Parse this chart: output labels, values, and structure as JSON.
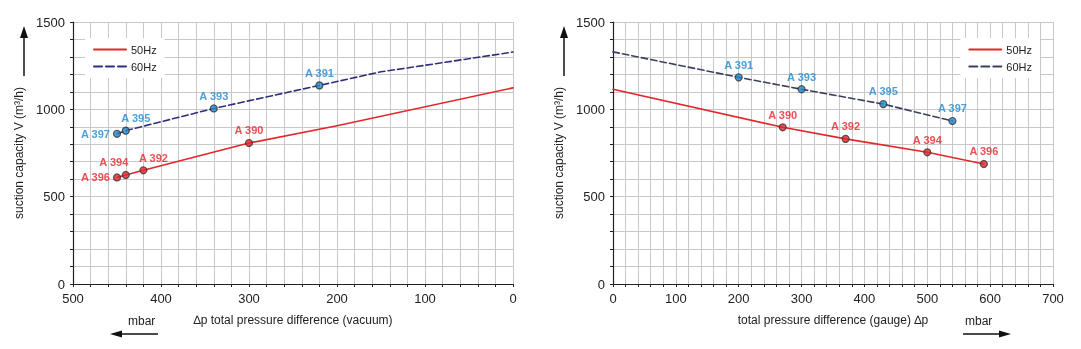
{
  "chart_data": [
    {
      "type": "line",
      "xlabel": "∆p total pressure difference (vacuum)",
      "ylabel": "suction capacity V (m³/h)",
      "annotations": [
        "mbar"
      ],
      "xlim": [
        500,
        0
      ],
      "ylim": [
        0,
        1500
      ],
      "xticks": [
        0,
        {
          "value": 20,
          "label": null
        },
        {
          "value": 40,
          "label": null
        },
        {
          "value": 60,
          "label": null
        },
        {
          "value": 80,
          "label": null
        },
        100,
        {
          "value": 120,
          "label": null
        },
        {
          "value": 140,
          "label": null
        },
        {
          "value": 160,
          "label": null
        },
        {
          "value": 180,
          "label": null
        },
        200,
        {
          "value": 220,
          "label": null
        },
        {
          "value": 240,
          "label": null
        },
        {
          "value": 260,
          "label": null
        },
        {
          "value": 280,
          "label": null
        },
        300,
        {
          "value": 320,
          "label": null
        },
        {
          "value": 340,
          "label": null
        },
        {
          "value": 360,
          "label": null
        },
        {
          "value": 380,
          "label": null
        },
        400,
        {
          "value": 420,
          "label": null
        },
        {
          "value": 440,
          "label": null
        },
        {
          "value": 460,
          "label": null
        },
        {
          "value": 480,
          "label": null
        },
        500
      ],
      "yticks": [
        0,
        {
          "value": 100,
          "label": null
        },
        {
          "value": 200,
          "label": null
        },
        {
          "value": 300,
          "label": null
        },
        {
          "value": 400,
          "label": null
        },
        500,
        {
          "value": 600,
          "label": null
        },
        {
          "value": 700,
          "label": null
        },
        {
          "value": 800,
          "label": null
        },
        {
          "value": 900,
          "label": null
        },
        1000,
        {
          "value": 1100,
          "label": null
        },
        {
          "value": 1200,
          "label": null
        },
        {
          "value": 1300,
          "label": null
        },
        {
          "value": 1400,
          "label": null
        },
        1500
      ],
      "grid": true,
      "legend": "top left",
      "series": [
        {
          "name": "50Hz",
          "color": "#e3262b",
          "line_style": "solid",
          "marker": "none",
          "x": [
            450,
            440,
            420,
            300,
            200,
            0
          ],
          "values": [
            610,
            624,
            651,
            807,
            906,
            1123
          ]
        },
        {
          "name": "60Hz",
          "color": "#2e2f7a",
          "line_style": "dashed",
          "marker": "none",
          "x": [
            450,
            440,
            340,
            220,
            150,
            100,
            0
          ],
          "values": [
            860,
            878,
            1005,
            1137,
            1215,
            1252,
            1328
          ]
        },
        {
          "type": "scatter",
          "color": "#e3262b",
          "marker": "circle",
          "x": [
            450,
            440,
            420,
            300
          ],
          "values": [
            610,
            624,
            651,
            807
          ],
          "value_labels": [
            "A 396",
            "A 394",
            "A 392",
            "A 390"
          ]
        },
        {
          "type": "scatter",
          "color": "#1e88d0",
          "marker": "circle",
          "x": [
            450,
            440,
            340,
            220
          ],
          "values": [
            860,
            878,
            1005,
            1137
          ],
          "value_labels": [
            "A 397",
            "A 395",
            "A 393",
            "A 391"
          ]
        }
      ]
    },
    {
      "type": "line",
      "xlabel": "total pressure difference (gauge) ∆p",
      "ylabel": "suction capacity V (m³/h)",
      "annotations": [
        "mbar"
      ],
      "xlim": [
        0,
        700
      ],
      "ylim": [
        0,
        1500
      ],
      "xticks": [
        0,
        {
          "value": 20,
          "label": null
        },
        {
          "value": 40,
          "label": null
        },
        {
          "value": 60,
          "label": null
        },
        {
          "value": 80,
          "label": null
        },
        100,
        {
          "value": 120,
          "label": null
        },
        {
          "value": 140,
          "label": null
        },
        {
          "value": 160,
          "label": null
        },
        {
          "value": 180,
          "label": null
        },
        200,
        {
          "value": 220,
          "label": null
        },
        {
          "value": 240,
          "label": null
        },
        {
          "value": 260,
          "label": null
        },
        {
          "value": 280,
          "label": null
        },
        300,
        {
          "value": 320,
          "label": null
        },
        {
          "value": 340,
          "label": null
        },
        {
          "value": 360,
          "label": null
        },
        {
          "value": 380,
          "label": null
        },
        400,
        {
          "value": 420,
          "label": null
        },
        {
          "value": 440,
          "label": null
        },
        {
          "value": 460,
          "label": null
        },
        {
          "value": 480,
          "label": null
        },
        500,
        {
          "value": 520,
          "label": null
        },
        {
          "value": 540,
          "label": null
        },
        {
          "value": 560,
          "label": null
        },
        {
          "value": 580,
          "label": null
        },
        600,
        {
          "value": 620,
          "label": null
        },
        {
          "value": 640,
          "label": null
        },
        {
          "value": 660,
          "label": null
        },
        {
          "value": 680,
          "label": null
        },
        700
      ],
      "yticks": [
        0,
        {
          "value": 100,
          "label": null
        },
        {
          "value": 200,
          "label": null
        },
        {
          "value": 300,
          "label": null
        },
        {
          "value": 400,
          "label": null
        },
        500,
        {
          "value": 600,
          "label": null
        },
        {
          "value": 700,
          "label": null
        },
        {
          "value": 800,
          "label": null
        },
        {
          "value": 900,
          "label": null
        },
        1000,
        {
          "value": 1100,
          "label": null
        },
        {
          "value": 1200,
          "label": null
        },
        {
          "value": 1300,
          "label": null
        },
        {
          "value": 1400,
          "label": null
        },
        1500
      ],
      "grid": true,
      "legend": "top right",
      "series": [
        {
          "name": "50Hz",
          "color": "#e3262b",
          "line_style": "solid",
          "marker": "none",
          "x": [
            0,
            270,
            370,
            500,
            590
          ],
          "values": [
            1115,
            897,
            831,
            754,
            687
          ]
        },
        {
          "name": "60Hz",
          "color": "#3b4060",
          "line_style": "dashed",
          "marker": "none",
          "x": [
            0,
            200,
            300,
            430,
            540
          ],
          "values": [
            1329,
            1183,
            1115,
            1030,
            933
          ]
        },
        {
          "type": "scatter",
          "color": "#e3262b",
          "marker": "circle",
          "x": [
            270,
            370,
            500,
            590
          ],
          "values": [
            897,
            831,
            754,
            687
          ],
          "value_labels": [
            "A 390",
            "A 392",
            "A 394",
            "A 396"
          ]
        },
        {
          "type": "scatter",
          "color": "#1e88d0",
          "marker": "circle",
          "x": [
            200,
            300,
            430,
            540
          ],
          "values": [
            1183,
            1115,
            1030,
            933
          ],
          "value_labels": [
            "A 391",
            "A 393",
            "A 395",
            "A 397"
          ]
        }
      ]
    }
  ]
}
